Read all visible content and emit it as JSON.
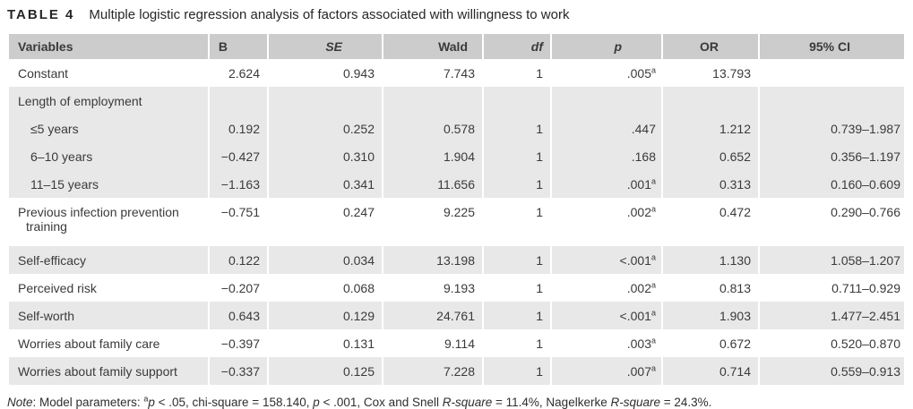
{
  "title": {
    "label": "TABLE 4",
    "text": "Multiple logistic regression analysis of factors associated with willingness to work"
  },
  "table": {
    "headers": [
      {
        "label": "Variables",
        "italic": false
      },
      {
        "label": "B",
        "italic": false
      },
      {
        "label": "SE",
        "italic": true
      },
      {
        "label": "Wald",
        "italic": false
      },
      {
        "label": "df",
        "italic": true
      },
      {
        "label": "p",
        "italic": true
      },
      {
        "label": "OR",
        "italic": false
      },
      {
        "label": "95% CI",
        "italic": false
      }
    ],
    "rows": [
      {
        "label": "Constant",
        "indent": 0,
        "hang": false,
        "shade": false,
        "b": "2.624",
        "se": "0.943",
        "wald": "7.743",
        "df": "1",
        "p": ".005",
        "p_sup": "a",
        "or": "13.793",
        "ci": ""
      },
      {
        "label": "Length of employment",
        "indent": 0,
        "hang": false,
        "shade": true,
        "b": "",
        "se": "",
        "wald": "",
        "df": "",
        "p": "",
        "p_sup": "",
        "or": "",
        "ci": ""
      },
      {
        "label": "≤5 years",
        "indent": 1,
        "hang": false,
        "shade": true,
        "b": "0.192",
        "se": "0.252",
        "wald": "0.578",
        "df": "1",
        "p": ".447",
        "p_sup": "",
        "or": "1.212",
        "ci": "0.739–1.987"
      },
      {
        "label": "6–10 years",
        "indent": 1,
        "hang": false,
        "shade": true,
        "b": "−0.427",
        "se": "0.310",
        "wald": "1.904",
        "df": "1",
        "p": ".168",
        "p_sup": "",
        "or": "0.652",
        "ci": "0.356–1.197"
      },
      {
        "label": "11–15 years",
        "indent": 1,
        "hang": false,
        "shade": true,
        "b": "−1.163",
        "se": "0.341",
        "wald": "11.656",
        "df": "1",
        "p": ".001",
        "p_sup": "a",
        "or": "0.313",
        "ci": "0.160–0.609"
      },
      {
        "label": "Previous infection prevention training",
        "indent": 0,
        "hang": true,
        "shade": false,
        "b": "−0.751",
        "se": "0.247",
        "wald": "9.225",
        "df": "1",
        "p": ".002",
        "p_sup": "a",
        "or": "0.472",
        "ci": "0.290–0.766"
      },
      {
        "label": "Self-efficacy",
        "indent": 0,
        "hang": false,
        "shade": true,
        "b": "0.122",
        "se": "0.034",
        "wald": "13.198",
        "df": "1",
        "p": "<.001",
        "p_sup": "a",
        "or": "1.130",
        "ci": "1.058–1.207"
      },
      {
        "label": "Perceived risk",
        "indent": 0,
        "hang": false,
        "shade": false,
        "b": "−0.207",
        "se": "0.068",
        "wald": "9.193",
        "df": "1",
        "p": ".002",
        "p_sup": "a",
        "or": "0.813",
        "ci": "0.711–0.929"
      },
      {
        "label": "Self-worth",
        "indent": 0,
        "hang": false,
        "shade": true,
        "b": "0.643",
        "se": "0.129",
        "wald": "24.761",
        "df": "1",
        "p": "<.001",
        "p_sup": "a",
        "or": "1.903",
        "ci": "1.477–2.451"
      },
      {
        "label": "Worries about family care",
        "indent": 0,
        "hang": false,
        "shade": false,
        "b": "−0.397",
        "se": "0.131",
        "wald": "9.114",
        "df": "1",
        "p": ".003",
        "p_sup": "a",
        "or": "0.672",
        "ci": "0.520–0.870"
      },
      {
        "label": "Worries about family support",
        "indent": 0,
        "hang": false,
        "shade": true,
        "b": "−0.337",
        "se": "0.125",
        "wald": "7.228",
        "df": "1",
        "p": ".007",
        "p_sup": "a",
        "or": "0.714",
        "ci": "0.559–0.913"
      }
    ]
  },
  "note": {
    "segments": [
      {
        "text": "Note",
        "italic": true
      },
      {
        "text": ": Model parameters: "
      },
      {
        "text": "a",
        "sup": true
      },
      {
        "text": "p",
        "italic": true
      },
      {
        "text": " < .05, chi-square = 158.140, "
      },
      {
        "text": "p",
        "italic": true
      },
      {
        "text": " < .001, Cox and Snell "
      },
      {
        "text": "R-square",
        "italic": true
      },
      {
        "text": " = 11.4%, Nagelkerke "
      },
      {
        "text": "R-square",
        "italic": true
      },
      {
        "text": " = 24.3%."
      }
    ]
  },
  "colors": {
    "header_bg": "#cccccc",
    "band_bg": "#e8e8e8",
    "text": "#3a3a3a",
    "title_text": "#262626",
    "page_bg": "#ffffff"
  }
}
